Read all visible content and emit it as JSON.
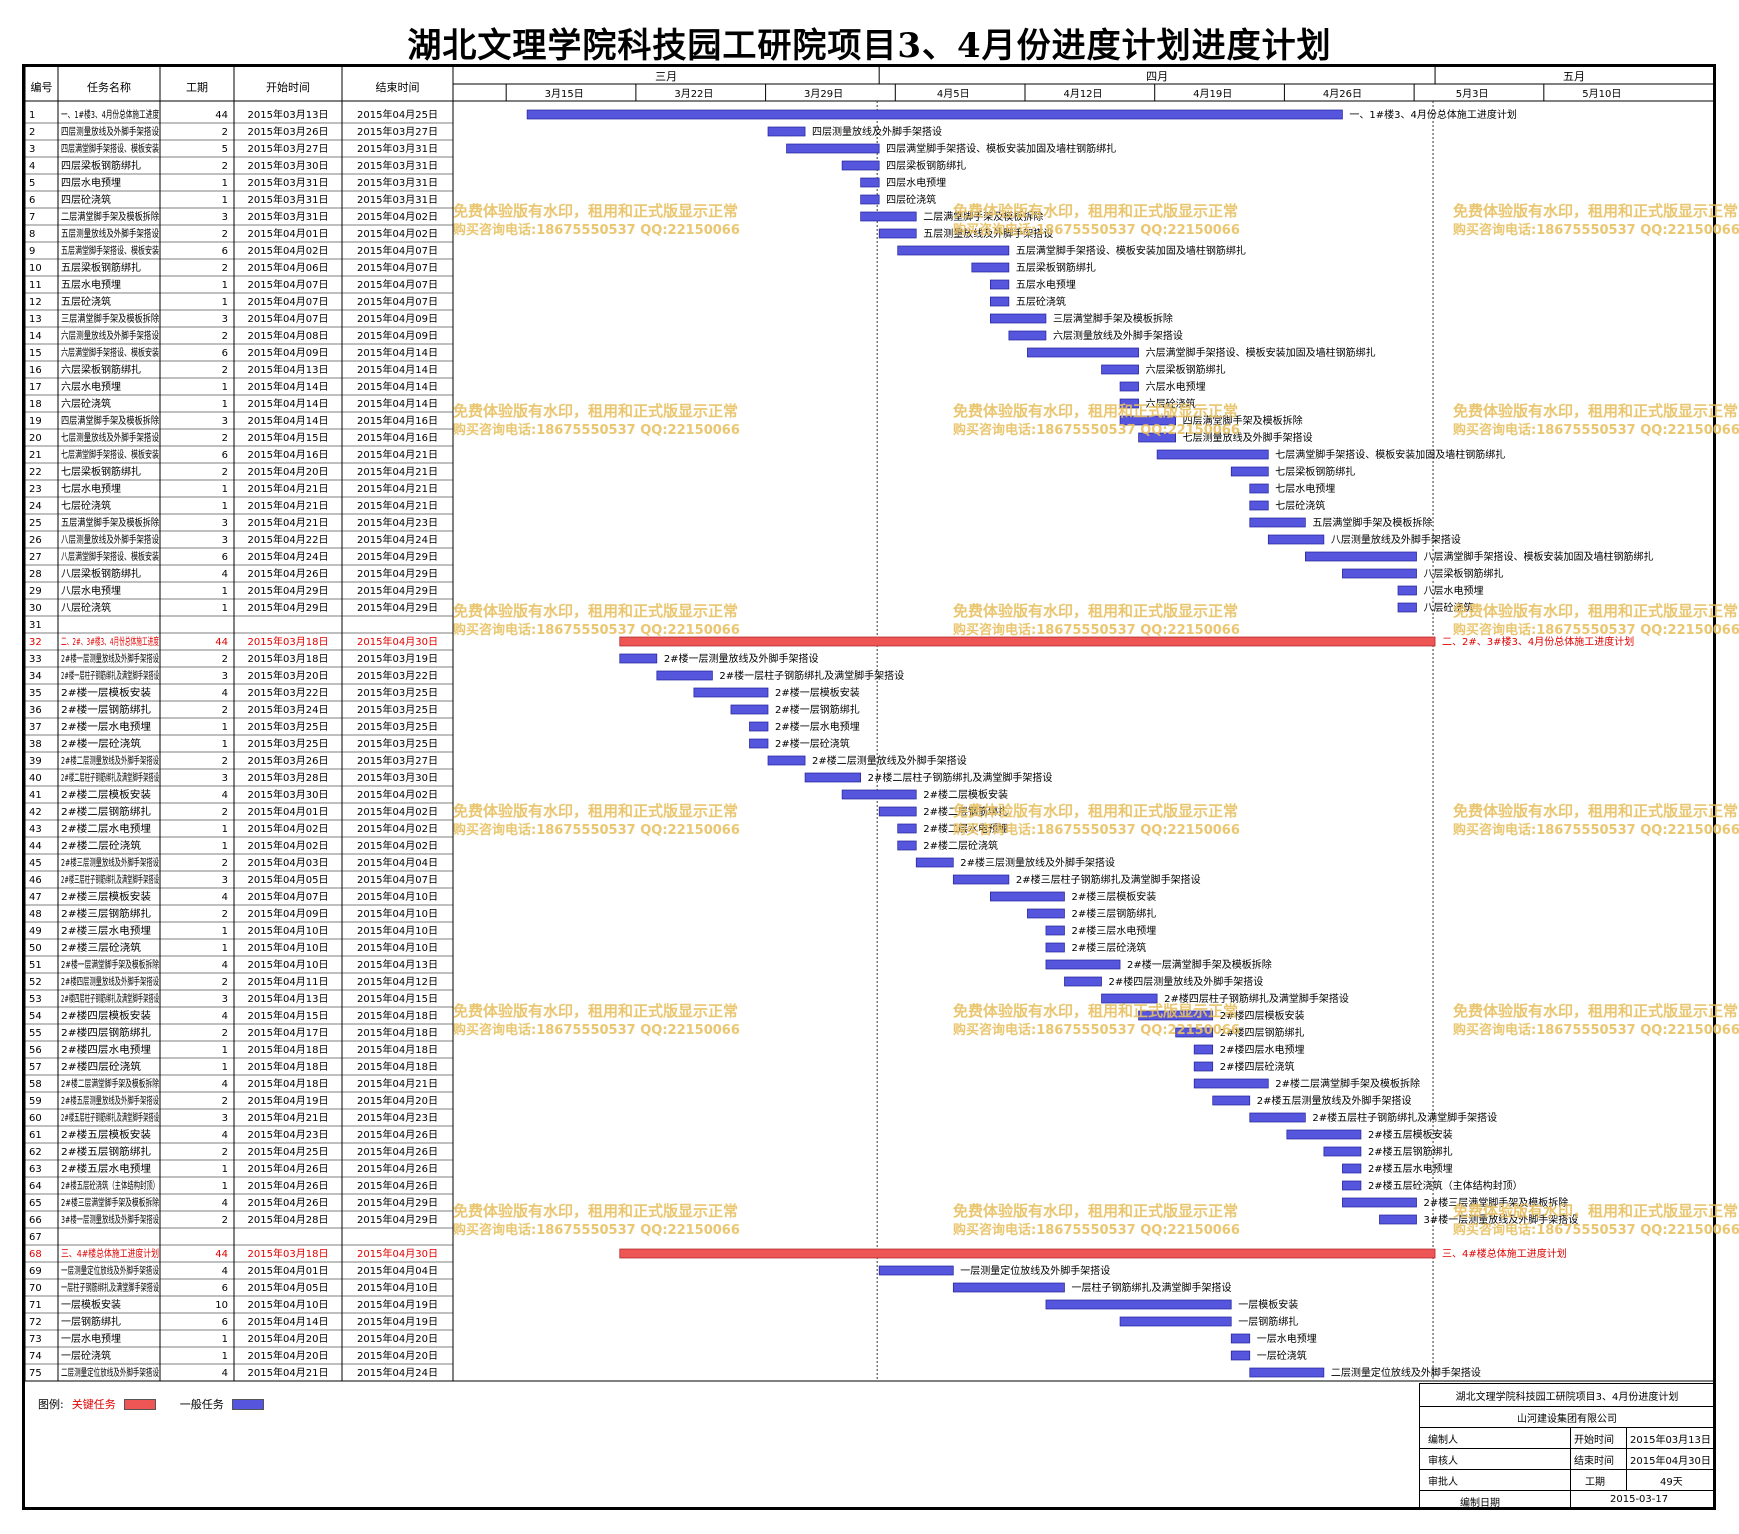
{
  "page": {
    "title": "湖北文理学院科技园工研院项目3、4月份进度计划进度计划"
  },
  "watermark": {
    "line1": "免费体验版有水印，租用和正式版显示正常",
    "line2": "购买咨询电话:18675550537 QQ:22150066"
  },
  "table_headers": {
    "id": "编号",
    "name": "任务名称",
    "duration": "工期",
    "start": "开始时间",
    "end": "结束时间"
  },
  "timeline": {
    "months": [
      {
        "label": "三月"
      },
      {
        "label": "四月"
      },
      {
        "label": "五月"
      }
    ],
    "weeks": [
      "3月15日",
      "3月22日",
      "3月29日",
      "4月5日",
      "4月12日",
      "4月19日",
      "4月26日",
      "5月3日",
      "5月10日"
    ]
  },
  "legend": {
    "label": "图例:",
    "critical": "关键任务",
    "normal": "一般任务"
  },
  "title_block": {
    "project": "湖北文理学院科技园工研院项目3、4月份进度计划",
    "company": "山河建设集团有限公司",
    "prepared_by_label": "编制人",
    "reviewed_by_label": "审核人",
    "approved_by_label": "审批人",
    "start_label": "开始时间",
    "start_value": "2015年03月13日",
    "end_label": "结束时间",
    "end_value": "2015年04月30日",
    "duration_label": "工期",
    "duration_value": "49天",
    "date_label": "编制日期",
    "date_value": "2015-03-17"
  },
  "colors": {
    "normal_bar": "#5555dd",
    "critical_bar": "#ee5555",
    "critical_text": "#e00000"
  },
  "chart_data": {
    "type": "gantt",
    "x_axis": {
      "start": "2015-03-09",
      "end": "2015-05-16"
    },
    "tasks": [
      {
        "id": "1",
        "name": "一、1#楼3、4月份总体施工进度",
        "dur": 44,
        "start": "2015年03月13日",
        "end": "2015年04月25日",
        "s": "2015-03-13",
        "e": "2015-04-25",
        "label": "一、1#楼3、4月份总体施工进度计划",
        "critical": false
      },
      {
        "id": "2",
        "name": "四层测量放线及外脚手架搭设",
        "dur": 2,
        "start": "2015年03月26日",
        "end": "2015年03月27日",
        "s": "2015-03-26",
        "e": "2015-03-27",
        "label": "四层测量放线及外脚手架搭设"
      },
      {
        "id": "3",
        "name": "四层满堂脚手架搭设、模板安装",
        "dur": 5,
        "start": "2015年03月27日",
        "end": "2015年03月31日",
        "s": "2015-03-27",
        "e": "2015-03-31",
        "label": "四层满堂脚手架搭设、模板安装加固及墙柱钢筋绑扎"
      },
      {
        "id": "4",
        "name": "四层梁板钢筋绑扎",
        "dur": 2,
        "start": "2015年03月30日",
        "end": "2015年03月31日",
        "s": "2015-03-30",
        "e": "2015-03-31",
        "label": "四层梁板钢筋绑扎"
      },
      {
        "id": "5",
        "name": "四层水电预埋",
        "dur": 1,
        "start": "2015年03月31日",
        "end": "2015年03月31日",
        "s": "2015-03-31",
        "e": "2015-03-31",
        "label": "四层水电预埋"
      },
      {
        "id": "6",
        "name": "四层砼浇筑",
        "dur": 1,
        "start": "2015年03月31日",
        "end": "2015年03月31日",
        "s": "2015-03-31",
        "e": "2015-03-31",
        "label": "四层砼浇筑"
      },
      {
        "id": "7",
        "name": "二层满堂脚手架及模板拆除",
        "dur": 3,
        "start": "2015年03月31日",
        "end": "2015年04月02日",
        "s": "2015-03-31",
        "e": "2015-04-02",
        "label": "二层满堂脚手架及模板拆除"
      },
      {
        "id": "8",
        "name": "五层测量放线及外脚手架搭设",
        "dur": 2,
        "start": "2015年04月01日",
        "end": "2015年04月02日",
        "s": "2015-04-01",
        "e": "2015-04-02",
        "label": "五层测量放线及外脚手架搭设"
      },
      {
        "id": "9",
        "name": "五层满堂脚手架搭设、模板安装",
        "dur": 6,
        "start": "2015年04月02日",
        "end": "2015年04月07日",
        "s": "2015-04-02",
        "e": "2015-04-07",
        "label": "五层满堂脚手架搭设、模板安装加固及墙柱钢筋绑扎"
      },
      {
        "id": "10",
        "name": "五层梁板钢筋绑扎",
        "dur": 2,
        "start": "2015年04月06日",
        "end": "2015年04月07日",
        "s": "2015-04-06",
        "e": "2015-04-07",
        "label": "五层梁板钢筋绑扎"
      },
      {
        "id": "11",
        "name": "五层水电预埋",
        "dur": 1,
        "start": "2015年04月07日",
        "end": "2015年04月07日",
        "s": "2015-04-07",
        "e": "2015-04-07",
        "label": "五层水电预埋"
      },
      {
        "id": "12",
        "name": "五层砼浇筑",
        "dur": 1,
        "start": "2015年04月07日",
        "end": "2015年04月07日",
        "s": "2015-04-07",
        "e": "2015-04-07",
        "label": "五层砼浇筑"
      },
      {
        "id": "13",
        "name": "三层满堂脚手架及模板拆除",
        "dur": 3,
        "start": "2015年04月07日",
        "end": "2015年04月09日",
        "s": "2015-04-07",
        "e": "2015-04-09",
        "label": "三层满堂脚手架及模板拆除"
      },
      {
        "id": "14",
        "name": "六层测量放线及外脚手架搭设",
        "dur": 2,
        "start": "2015年04月08日",
        "end": "2015年04月09日",
        "s": "2015-04-08",
        "e": "2015-04-09",
        "label": "六层测量放线及外脚手架搭设"
      },
      {
        "id": "15",
        "name": "六层满堂脚手架搭设、模板安装",
        "dur": 6,
        "start": "2015年04月09日",
        "end": "2015年04月14日",
        "s": "2015-04-09",
        "e": "2015-04-14",
        "label": "六层满堂脚手架搭设、模板安装加固及墙柱钢筋绑扎"
      },
      {
        "id": "16",
        "name": "六层梁板钢筋绑扎",
        "dur": 2,
        "start": "2015年04月13日",
        "end": "2015年04月14日",
        "s": "2015-04-13",
        "e": "2015-04-14",
        "label": "六层梁板钢筋绑扎"
      },
      {
        "id": "17",
        "name": "六层水电预埋",
        "dur": 1,
        "start": "2015年04月14日",
        "end": "2015年04月14日",
        "s": "2015-04-14",
        "e": "2015-04-14",
        "label": "六层水电预埋"
      },
      {
        "id": "18",
        "name": "六层砼浇筑",
        "dur": 1,
        "start": "2015年04月14日",
        "end": "2015年04月14日",
        "s": "2015-04-14",
        "e": "2015-04-14",
        "label": "六层砼浇筑"
      },
      {
        "id": "19",
        "name": "四层满堂脚手架及模板拆除",
        "dur": 3,
        "start": "2015年04月14日",
        "end": "2015年04月16日",
        "s": "2015-04-14",
        "e": "2015-04-16",
        "label": "四层满堂脚手架及模板拆除"
      },
      {
        "id": "20",
        "name": "七层测量放线及外脚手架搭设",
        "dur": 2,
        "start": "2015年04月15日",
        "end": "2015年04月16日",
        "s": "2015-04-15",
        "e": "2015-04-16",
        "label": "七层测量放线及外脚手架搭设"
      },
      {
        "id": "21",
        "name": "七层满堂脚手架搭设、模板安装",
        "dur": 6,
        "start": "2015年04月16日",
        "end": "2015年04月21日",
        "s": "2015-04-16",
        "e": "2015-04-21",
        "label": "七层满堂脚手架搭设、模板安装加固及墙柱钢筋绑扎"
      },
      {
        "id": "22",
        "name": "七层梁板钢筋绑扎",
        "dur": 2,
        "start": "2015年04月20日",
        "end": "2015年04月21日",
        "s": "2015-04-20",
        "e": "2015-04-21",
        "label": "七层梁板钢筋绑扎"
      },
      {
        "id": "23",
        "name": "七层水电预埋",
        "dur": 1,
        "start": "2015年04月21日",
        "end": "2015年04月21日",
        "s": "2015-04-21",
        "e": "2015-04-21",
        "label": "七层水电预埋"
      },
      {
        "id": "24",
        "name": "七层砼浇筑",
        "dur": 1,
        "start": "2015年04月21日",
        "end": "2015年04月21日",
        "s": "2015-04-21",
        "e": "2015-04-21",
        "label": "七层砼浇筑"
      },
      {
        "id": "25",
        "name": "五层满堂脚手架及模板拆除",
        "dur": 3,
        "start": "2015年04月21日",
        "end": "2015年04月23日",
        "s": "2015-04-21",
        "e": "2015-04-23",
        "label": "五层满堂脚手架及模板拆除"
      },
      {
        "id": "26",
        "name": "八层测量放线及外脚手架搭设",
        "dur": 3,
        "start": "2015年04月22日",
        "end": "2015年04月24日",
        "s": "2015-04-22",
        "e": "2015-04-24",
        "label": "八层测量放线及外脚手架搭设"
      },
      {
        "id": "27",
        "name": "八层满堂脚手架搭设、模板安装",
        "dur": 6,
        "start": "2015年04月24日",
        "end": "2015年04月29日",
        "s": "2015-04-24",
        "e": "2015-04-29",
        "label": "八层满堂脚手架搭设、模板安装加固及墙柱钢筋绑扎"
      },
      {
        "id": "28",
        "name": "八层梁板钢筋绑扎",
        "dur": 4,
        "start": "2015年04月26日",
        "end": "2015年04月29日",
        "s": "2015-04-26",
        "e": "2015-04-29",
        "label": "八层梁板钢筋绑扎"
      },
      {
        "id": "29",
        "name": "八层水电预埋",
        "dur": 1,
        "start": "2015年04月29日",
        "end": "2015年04月29日",
        "s": "2015-04-29",
        "e": "2015-04-29",
        "label": "八层水电预埋"
      },
      {
        "id": "30",
        "name": "八层砼浇筑",
        "dur": 1,
        "start": "2015年04月29日",
        "end": "2015年04月29日",
        "s": "2015-04-29",
        "e": "2015-04-29",
        "label": "八层砼浇筑"
      },
      {
        "id": "31",
        "name": "",
        "dur": null,
        "start": "",
        "end": "",
        "s": null,
        "e": null,
        "label": ""
      },
      {
        "id": "32",
        "name": "二、2#、3#楼3、4月份总体施工进度",
        "dur": 44,
        "start": "2015年03月18日",
        "end": "2015年04月30日",
        "s": "2015-03-18",
        "e": "2015-04-30",
        "label": "二、2#、3#楼3、4月份总体施工进度计划",
        "critical": true
      },
      {
        "id": "33",
        "name": "2#楼一层测量放线及外脚手架搭设",
        "dur": 2,
        "start": "2015年03月18日",
        "end": "2015年03月19日",
        "s": "2015-03-18",
        "e": "2015-03-19",
        "label": "2#楼一层测量放线及外脚手架搭设"
      },
      {
        "id": "34",
        "name": "2#楼一层柱子钢筋绑扎及满堂脚手架搭设",
        "dur": 3,
        "start": "2015年03月20日",
        "end": "2015年03月22日",
        "s": "2015-03-20",
        "e": "2015-03-22",
        "label": "2#楼一层柱子钢筋绑扎及满堂脚手架搭设"
      },
      {
        "id": "35",
        "name": "2#楼一层模板安装",
        "dur": 4,
        "start": "2015年03月22日",
        "end": "2015年03月25日",
        "s": "2015-03-22",
        "e": "2015-03-25",
        "label": "2#楼一层模板安装"
      },
      {
        "id": "36",
        "name": "2#楼一层钢筋绑扎",
        "dur": 2,
        "start": "2015年03月24日",
        "end": "2015年03月25日",
        "s": "2015-03-24",
        "e": "2015-03-25",
        "label": "2#楼一层钢筋绑扎"
      },
      {
        "id": "37",
        "name": "2#楼一层水电预埋",
        "dur": 1,
        "start": "2015年03月25日",
        "end": "2015年03月25日",
        "s": "2015-03-25",
        "e": "2015-03-25",
        "label": "2#楼一层水电预埋"
      },
      {
        "id": "38",
        "name": "2#楼一层砼浇筑",
        "dur": 1,
        "start": "2015年03月25日",
        "end": "2015年03月25日",
        "s": "2015-03-25",
        "e": "2015-03-25",
        "label": "2#楼一层砼浇筑"
      },
      {
        "id": "39",
        "name": "2#楼二层测量放线及外脚手架搭设",
        "dur": 2,
        "start": "2015年03月26日",
        "end": "2015年03月27日",
        "s": "2015-03-26",
        "e": "2015-03-27",
        "label": "2#楼二层测量放线及外脚手架搭设"
      },
      {
        "id": "40",
        "name": "2#楼二层柱子钢筋绑扎及满堂脚手架搭设",
        "dur": 3,
        "start": "2015年03月28日",
        "end": "2015年03月30日",
        "s": "2015-03-28",
        "e": "2015-03-30",
        "label": "2#楼二层柱子钢筋绑扎及满堂脚手架搭设"
      },
      {
        "id": "41",
        "name": "2#楼二层模板安装",
        "dur": 4,
        "start": "2015年03月30日",
        "end": "2015年04月02日",
        "s": "2015-03-30",
        "e": "2015-04-02",
        "label": "2#楼二层模板安装"
      },
      {
        "id": "42",
        "name": "2#楼二层钢筋绑扎",
        "dur": 2,
        "start": "2015年04月01日",
        "end": "2015年04月02日",
        "s": "2015-04-01",
        "e": "2015-04-02",
        "label": "2#楼二层钢筋绑扎"
      },
      {
        "id": "43",
        "name": "2#楼二层水电预埋",
        "dur": 1,
        "start": "2015年04月02日",
        "end": "2015年04月02日",
        "s": "2015-04-02",
        "e": "2015-04-02",
        "label": "2#楼二层水电预埋"
      },
      {
        "id": "44",
        "name": "2#楼二层砼浇筑",
        "dur": 1,
        "start": "2015年04月02日",
        "end": "2015年04月02日",
        "s": "2015-04-02",
        "e": "2015-04-02",
        "label": "2#楼二层砼浇筑"
      },
      {
        "id": "45",
        "name": "2#楼三层测量放线及外脚手架搭设",
        "dur": 2,
        "start": "2015年04月03日",
        "end": "2015年04月04日",
        "s": "2015-04-03",
        "e": "2015-04-04",
        "label": "2#楼三层测量放线及外脚手架搭设"
      },
      {
        "id": "46",
        "name": "2#楼三层柱子钢筋绑扎及满堂脚手架搭设",
        "dur": 3,
        "start": "2015年04月05日",
        "end": "2015年04月07日",
        "s": "2015-04-05",
        "e": "2015-04-07",
        "label": "2#楼三层柱子钢筋绑扎及满堂脚手架搭设"
      },
      {
        "id": "47",
        "name": "2#楼三层模板安装",
        "dur": 4,
        "start": "2015年04月07日",
        "end": "2015年04月10日",
        "s": "2015-04-07",
        "e": "2015-04-10",
        "label": "2#楼三层模板安装"
      },
      {
        "id": "48",
        "name": "2#楼三层钢筋绑扎",
        "dur": 2,
        "start": "2015年04月09日",
        "end": "2015年04月10日",
        "s": "2015-04-09",
        "e": "2015-04-10",
        "label": "2#楼三层钢筋绑扎"
      },
      {
        "id": "49",
        "name": "2#楼三层水电预埋",
        "dur": 1,
        "start": "2015年04月10日",
        "end": "2015年04月10日",
        "s": "2015-04-10",
        "e": "2015-04-10",
        "label": "2#楼三层水电预埋"
      },
      {
        "id": "50",
        "name": "2#楼三层砼浇筑",
        "dur": 1,
        "start": "2015年04月10日",
        "end": "2015年04月10日",
        "s": "2015-04-10",
        "e": "2015-04-10",
        "label": "2#楼三层砼浇筑"
      },
      {
        "id": "51",
        "name": "2#楼一层满堂脚手架及模板拆除",
        "dur": 4,
        "start": "2015年04月10日",
        "end": "2015年04月13日",
        "s": "2015-04-10",
        "e": "2015-04-13",
        "label": "2#楼一层满堂脚手架及模板拆除"
      },
      {
        "id": "52",
        "name": "2#楼四层测量放线及外脚手架搭设",
        "dur": 2,
        "start": "2015年04月11日",
        "end": "2015年04月12日",
        "s": "2015-04-11",
        "e": "2015-04-12",
        "label": "2#楼四层测量放线及外脚手架搭设"
      },
      {
        "id": "53",
        "name": "2#楼四层柱子钢筋绑扎及满堂脚手架搭设",
        "dur": 3,
        "start": "2015年04月13日",
        "end": "2015年04月15日",
        "s": "2015-04-13",
        "e": "2015-04-15",
        "label": "2#楼四层柱子钢筋绑扎及满堂脚手架搭设"
      },
      {
        "id": "54",
        "name": "2#楼四层模板安装",
        "dur": 4,
        "start": "2015年04月15日",
        "end": "2015年04月18日",
        "s": "2015-04-15",
        "e": "2015-04-18",
        "label": "2#楼四层模板安装"
      },
      {
        "id": "55",
        "name": "2#楼四层钢筋绑扎",
        "dur": 2,
        "start": "2015年04月17日",
        "end": "2015年04月18日",
        "s": "2015-04-17",
        "e": "2015-04-18",
        "label": "2#楼四层钢筋绑扎"
      },
      {
        "id": "56",
        "name": "2#楼四层水电预埋",
        "dur": 1,
        "start": "2015年04月18日",
        "end": "2015年04月18日",
        "s": "2015-04-18",
        "e": "2015-04-18",
        "label": "2#楼四层水电预埋"
      },
      {
        "id": "57",
        "name": "2#楼四层砼浇筑",
        "dur": 1,
        "start": "2015年04月18日",
        "end": "2015年04月18日",
        "s": "2015-04-18",
        "e": "2015-04-18",
        "label": "2#楼四层砼浇筑"
      },
      {
        "id": "58",
        "name": "2#楼二层满堂脚手架及模板拆除",
        "dur": 4,
        "start": "2015年04月18日",
        "end": "2015年04月21日",
        "s": "2015-04-18",
        "e": "2015-04-21",
        "label": "2#楼二层满堂脚手架及模板拆除"
      },
      {
        "id": "59",
        "name": "2#楼五层测量放线及外脚手架搭设",
        "dur": 2,
        "start": "2015年04月19日",
        "end": "2015年04月20日",
        "s": "2015-04-19",
        "e": "2015-04-20",
        "label": "2#楼五层测量放线及外脚手架搭设"
      },
      {
        "id": "60",
        "name": "2#楼五层柱子钢筋绑扎及满堂脚手架搭设",
        "dur": 3,
        "start": "2015年04月21日",
        "end": "2015年04月23日",
        "s": "2015-04-21",
        "e": "2015-04-23",
        "label": "2#楼五层柱子钢筋绑扎及满堂脚手架搭设"
      },
      {
        "id": "61",
        "name": "2#楼五层模板安装",
        "dur": 4,
        "start": "2015年04月23日",
        "end": "2015年04月26日",
        "s": "2015-04-23",
        "e": "2015-04-26",
        "label": "2#楼五层模板安装"
      },
      {
        "id": "62",
        "name": "2#楼五层钢筋绑扎",
        "dur": 2,
        "start": "2015年04月25日",
        "end": "2015年04月26日",
        "s": "2015-04-25",
        "e": "2015-04-26",
        "label": "2#楼五层钢筋绑扎"
      },
      {
        "id": "63",
        "name": "2#楼五层水电预埋",
        "dur": 1,
        "start": "2015年04月26日",
        "end": "2015年04月26日",
        "s": "2015-04-26",
        "e": "2015-04-26",
        "label": "2#楼五层水电预埋"
      },
      {
        "id": "64",
        "name": "2#楼五层砼浇筑（主体结构封顶）",
        "dur": 1,
        "start": "2015年04月26日",
        "end": "2015年04月26日",
        "s": "2015-04-26",
        "e": "2015-04-26",
        "label": "2#楼五层砼浇筑（主体结构封顶）"
      },
      {
        "id": "65",
        "name": "2#楼三层满堂脚手架及模板拆除",
        "dur": 4,
        "start": "2015年04月26日",
        "end": "2015年04月29日",
        "s": "2015-04-26",
        "e": "2015-04-29",
        "label": "2#楼三层满堂脚手架及模板拆除"
      },
      {
        "id": "66",
        "name": "3#楼一层测量放线及外脚手架搭设",
        "dur": 2,
        "start": "2015年04月28日",
        "end": "2015年04月29日",
        "s": "2015-04-28",
        "e": "2015-04-29",
        "label": "3#楼一层测量放线及外脚手架搭设"
      },
      {
        "id": "67",
        "name": "",
        "dur": null,
        "start": "",
        "end": "",
        "s": null,
        "e": null,
        "label": ""
      },
      {
        "id": "68",
        "name": "三、4#楼总体施工进度计划",
        "dur": 44,
        "start": "2015年03月18日",
        "end": "2015年04月30日",
        "s": "2015-03-18",
        "e": "2015-04-30",
        "label": "三、4#楼总体施工进度计划",
        "critical": true
      },
      {
        "id": "69",
        "name": "一层测量定位放线及外脚手架搭设",
        "dur": 4,
        "start": "2015年04月01日",
        "end": "2015年04月04日",
        "s": "2015-04-01",
        "e": "2015-04-04",
        "label": "一层测量定位放线及外脚手架搭设"
      },
      {
        "id": "70",
        "name": "一层柱子钢筋绑扎及满堂脚手架搭设",
        "dur": 6,
        "start": "2015年04月05日",
        "end": "2015年04月10日",
        "s": "2015-04-05",
        "e": "2015-04-10",
        "label": "一层柱子钢筋绑扎及满堂脚手架搭设"
      },
      {
        "id": "71",
        "name": "一层模板安装",
        "dur": 10,
        "start": "2015年04月10日",
        "end": "2015年04月19日",
        "s": "2015-04-10",
        "e": "2015-04-19",
        "label": "一层模板安装"
      },
      {
        "id": "72",
        "name": "一层钢筋绑扎",
        "dur": 6,
        "start": "2015年04月14日",
        "end": "2015年04月19日",
        "s": "2015-04-14",
        "e": "2015-04-19",
        "label": "一层钢筋绑扎"
      },
      {
        "id": "73",
        "name": "一层水电预埋",
        "dur": 1,
        "start": "2015年04月20日",
        "end": "2015年04月20日",
        "s": "2015-04-20",
        "e": "2015-04-20",
        "label": "一层水电预埋"
      },
      {
        "id": "74",
        "name": "一层砼浇筑",
        "dur": 1,
        "start": "2015年04月20日",
        "end": "2015年04月20日",
        "s": "2015-04-20",
        "e": "2015-04-20",
        "label": "一层砼浇筑"
      },
      {
        "id": "75",
        "name": "二层测量定位放线及外脚手架搭设",
        "dur": 4,
        "start": "2015年04月21日",
        "end": "2015年04月24日",
        "s": "2015-04-21",
        "e": "2015-04-24",
        "label": "二层测量定位放线及外脚手架搭设"
      }
    ]
  }
}
